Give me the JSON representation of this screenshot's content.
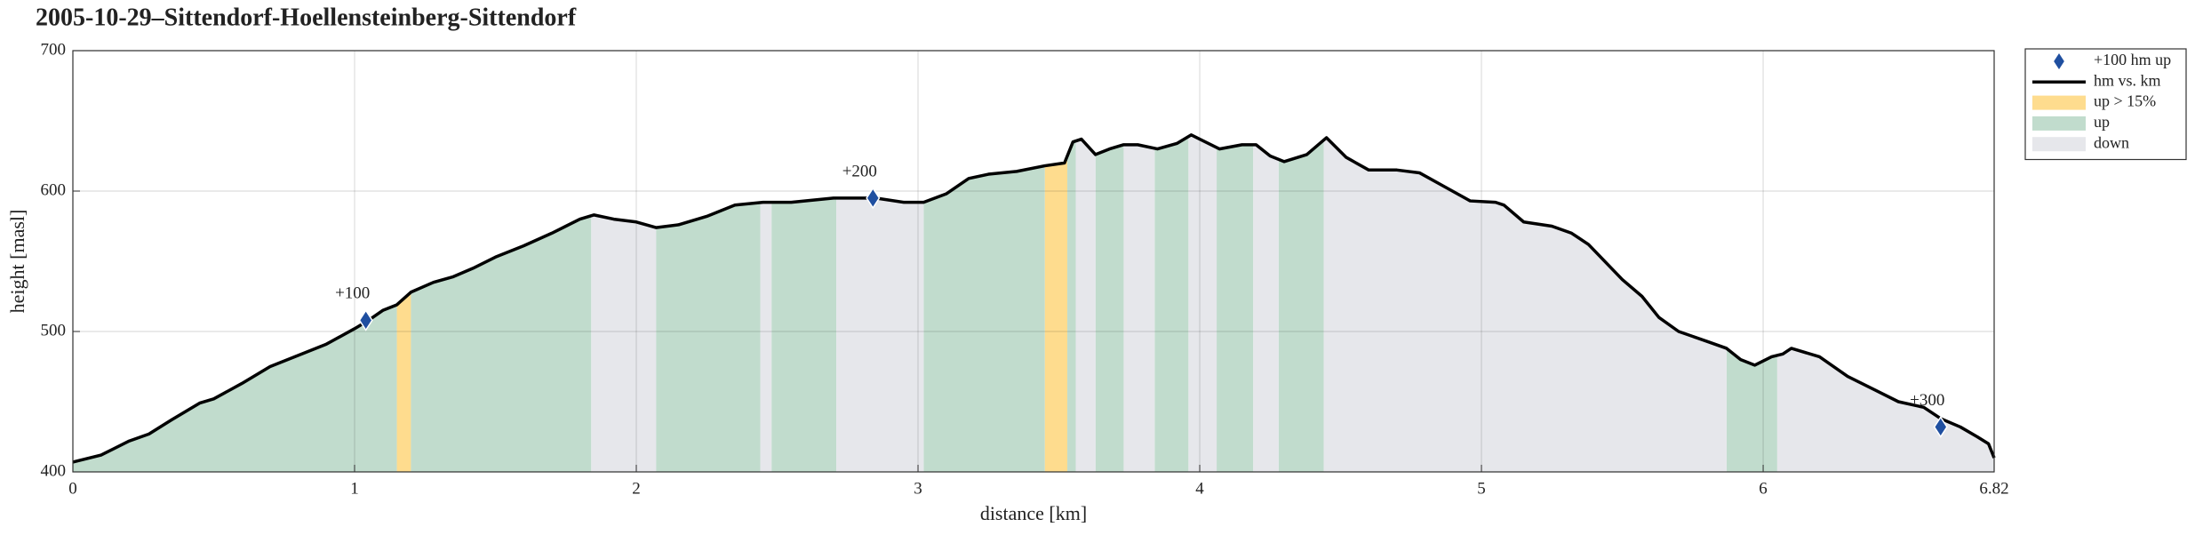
{
  "chart_data": {
    "type": "line",
    "title": "2005-10-29–Sittendorf-Hoellensteinberg-Sittendorf",
    "xlabel": "distance [km]",
    "ylabel": "height [masl]",
    "xlim": [
      0,
      6.82
    ],
    "ylim": [
      400,
      700
    ],
    "xticks": [
      0,
      1,
      2,
      3,
      4,
      5,
      6,
      6.82
    ],
    "yticks": [
      400,
      500,
      600,
      700
    ],
    "grid": true,
    "legend": "outside-right",
    "series": [
      {
        "name": "+100 hm up",
        "color": "#1f4fa0",
        "marker": "diamond",
        "x": [
          1.04,
          2.84,
          6.63
        ],
        "values": [
          508,
          595,
          432
        ],
        "value_labels": [
          "+100",
          "+200",
          "+300"
        ]
      },
      {
        "name": "hm vs. km",
        "color": "#000000",
        "x": [
          0,
          0.1,
          0.2,
          0.27,
          0.35,
          0.45,
          0.5,
          0.6,
          0.7,
          0.8,
          0.9,
          1.0,
          1.05,
          1.1,
          1.15,
          1.2,
          1.28,
          1.35,
          1.42,
          1.5,
          1.6,
          1.7,
          1.8,
          1.85,
          1.92,
          2.0,
          2.07,
          2.15,
          2.25,
          2.35,
          2.45,
          2.55,
          2.7,
          2.85,
          2.95,
          3.02,
          3.1,
          3.18,
          3.25,
          3.35,
          3.45,
          3.52,
          3.55,
          3.58,
          3.63,
          3.68,
          3.73,
          3.78,
          3.85,
          3.92,
          3.97,
          4.0,
          4.07,
          4.15,
          4.2,
          4.25,
          4.3,
          4.38,
          4.45,
          4.52,
          4.6,
          4.7,
          4.78,
          4.87,
          4.96,
          5.05,
          5.08,
          5.15,
          5.25,
          5.32,
          5.38,
          5.5,
          5.57,
          5.63,
          5.7,
          5.8,
          5.87,
          5.92,
          5.97,
          6.03,
          6.07,
          6.1,
          6.2,
          6.3,
          6.4,
          6.48,
          6.57,
          6.63,
          6.7,
          6.76,
          6.8,
          6.82
        ],
        "values": [
          407,
          412,
          422,
          427,
          437,
          449,
          452,
          463,
          475,
          483,
          491,
          502,
          508,
          515,
          519,
          528,
          535,
          539,
          545,
          553,
          561,
          570,
          580,
          583,
          580,
          578,
          574,
          576,
          582,
          590,
          592,
          592,
          595,
          595,
          592,
          592,
          598,
          609,
          612,
          614,
          618,
          620,
          635,
          637,
          626,
          630,
          633,
          633,
          630,
          634,
          640,
          637,
          630,
          633,
          633,
          625,
          621,
          626,
          638,
          624,
          615,
          615,
          613,
          603,
          593,
          592,
          590,
          578,
          575,
          570,
          562,
          537,
          525,
          510,
          500,
          493,
          488,
          480,
          476,
          482,
          484,
          488,
          482,
          468,
          458,
          450,
          446,
          438,
          432,
          425,
          420,
          410
        ]
      }
    ],
    "regions": [
      {
        "name": "up > 15%",
        "color": "#fedc8e",
        "spans": [
          [
            1.15,
            1.2
          ],
          [
            3.45,
            3.53
          ]
        ]
      },
      {
        "name": "up",
        "color": "#c1dccd",
        "spans": [
          [
            0,
            1.15
          ],
          [
            1.2,
            1.84
          ],
          [
            2.07,
            2.44
          ],
          [
            2.48,
            2.71
          ],
          [
            3.02,
            3.45
          ],
          [
            3.53,
            3.56
          ],
          [
            3.63,
            3.73
          ],
          [
            3.84,
            3.96
          ],
          [
            4.06,
            4.19
          ],
          [
            4.28,
            4.44
          ],
          [
            5.87,
            6.05
          ]
        ]
      },
      {
        "name": "down",
        "color": "#e6e7eb",
        "spans": [
          [
            1.84,
            2.07
          ],
          [
            2.44,
            2.48
          ],
          [
            2.71,
            3.02
          ],
          [
            3.56,
            3.63
          ],
          [
            3.73,
            3.84
          ],
          [
            3.96,
            4.06
          ],
          [
            4.19,
            4.28
          ],
          [
            4.44,
            5.87
          ],
          [
            6.05,
            6.82
          ]
        ]
      }
    ]
  }
}
